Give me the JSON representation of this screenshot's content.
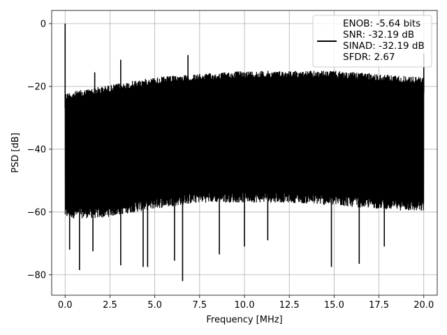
{
  "chart_data": {
    "type": "line",
    "title": "",
    "xlabel": "Frequency [MHz]",
    "ylabel": "PSD [dB]",
    "xlim": [
      -0.75,
      20.75
    ],
    "ylim": [
      -86.5,
      4.2
    ],
    "xticks": [
      0.0,
      2.5,
      5.0,
      7.5,
      10.0,
      12.5,
      15.0,
      17.5,
      20.0
    ],
    "xtick_labels": [
      "0.0",
      "2.5",
      "5.0",
      "7.5",
      "10.0",
      "12.5",
      "15.0",
      "17.5",
      "20.0"
    ],
    "yticks": [
      0,
      -20,
      -40,
      -60,
      -80
    ],
    "ytick_labels": [
      "0",
      "−20",
      "−40",
      "−60",
      "−80"
    ],
    "grid": true,
    "legend_position": "top-right",
    "series": [
      {
        "name": "",
        "color": "#000000",
        "x_range": [
          0.0,
          20.0
        ],
        "upper_envelope": [
          [
            0.0,
            -22
          ],
          [
            2.0,
            -20
          ],
          [
            5.0,
            -17
          ],
          [
            7.5,
            -16
          ],
          [
            10.0,
            -15
          ],
          [
            12.5,
            -15
          ],
          [
            15.0,
            -15
          ],
          [
            17.5,
            -16
          ],
          [
            20.0,
            -17
          ]
        ],
        "lower_envelope": [
          [
            0.0,
            -62
          ],
          [
            2.0,
            -62
          ],
          [
            5.0,
            -59
          ],
          [
            7.5,
            -57
          ],
          [
            10.0,
            -57
          ],
          [
            12.5,
            -57
          ],
          [
            15.0,
            -58
          ],
          [
            17.5,
            -59
          ],
          [
            20.0,
            -60
          ]
        ],
        "peaks": [
          {
            "x": 0.0,
            "y": 0
          },
          {
            "x": 1.65,
            "y": -15.5
          },
          {
            "x": 3.1,
            "y": -11.5
          },
          {
            "x": 6.85,
            "y": -10
          },
          {
            "x": 20.0,
            "y": -9.5
          }
        ],
        "dips": [
          {
            "x": 0.25,
            "y": -72
          },
          {
            "x": 0.8,
            "y": -78.5
          },
          {
            "x": 1.55,
            "y": -72.5
          },
          {
            "x": 3.1,
            "y": -77
          },
          {
            "x": 4.35,
            "y": -77.5
          },
          {
            "x": 4.6,
            "y": -77.5
          },
          {
            "x": 6.1,
            "y": -75.5
          },
          {
            "x": 6.55,
            "y": -82
          },
          {
            "x": 8.6,
            "y": -73.5
          },
          {
            "x": 10.0,
            "y": -71
          },
          {
            "x": 11.3,
            "y": -69
          },
          {
            "x": 14.85,
            "y": -77.5
          },
          {
            "x": 16.4,
            "y": -76.5
          },
          {
            "x": 17.8,
            "y": -71
          }
        ]
      }
    ],
    "legend": {
      "lines": [
        "ENOB: -5.64 bits",
        "SNR: -32.19 dB",
        "SINAD: -32.19 dB",
        "SFDR: 2.67"
      ]
    }
  }
}
